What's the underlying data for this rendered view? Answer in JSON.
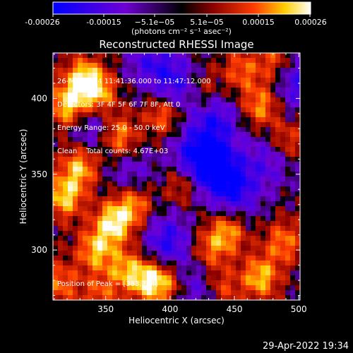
{
  "colorbar": {
    "ticks": [
      "-0.00026",
      "-0.00015",
      "−5.1e−05",
      "5.1e−05",
      "0.00015",
      "0.00026"
    ],
    "unit": "(photons cm⁻² s⁻¹ asec⁻²)",
    "colors": [
      "#0000ff",
      "#6f00d4",
      "#000000",
      "#8a0000",
      "#ff3c00",
      "#ffd000",
      "#ffffff"
    ]
  },
  "chart_data": {
    "type": "heatmap",
    "title": "Reconstructed RHESSI Image",
    "xlabel": "Heliocentric X (arcsec)",
    "ylabel": "Heliocentric Y (arcsec)",
    "xlim": [
      309,
      501
    ],
    "ylim": [
      267,
      430
    ],
    "xticks": [
      350,
      400,
      450,
      500
    ],
    "yticks": [
      300,
      350,
      400
    ],
    "value_range": [
      -0.00026,
      0.00026
    ],
    "peak": [
      383,
      264
    ],
    "blobs": [
      {
        "x": 333,
        "y": 412,
        "v": 1.0
      },
      {
        "x": 320,
        "y": 395,
        "v": 0.9
      },
      {
        "x": 345,
        "y": 403,
        "v": 0.75
      },
      {
        "x": 330,
        "y": 355,
        "v": 0.85
      },
      {
        "x": 318,
        "y": 335,
        "v": 0.9
      },
      {
        "x": 356,
        "y": 318,
        "v": 1.0
      },
      {
        "x": 342,
        "y": 300,
        "v": 0.8
      },
      {
        "x": 372,
        "y": 330,
        "v": 0.75
      },
      {
        "x": 384,
        "y": 280,
        "v": 1.0
      },
      {
        "x": 365,
        "y": 287,
        "v": 0.7
      },
      {
        "x": 360,
        "y": 375,
        "v": 0.8
      },
      {
        "x": 395,
        "y": 390,
        "v": 0.7
      },
      {
        "x": 410,
        "y": 345,
        "v": 0.6
      },
      {
        "x": 430,
        "y": 300,
        "v": 0.55
      },
      {
        "x": 445,
        "y": 312,
        "v": 0.75
      },
      {
        "x": 470,
        "y": 282,
        "v": 0.85
      },
      {
        "x": 488,
        "y": 305,
        "v": 0.65
      },
      {
        "x": 470,
        "y": 395,
        "v": 0.7
      },
      {
        "x": 490,
        "y": 372,
        "v": 0.55
      },
      {
        "x": 455,
        "y": 418,
        "v": 0.55
      },
      {
        "x": 480,
        "y": 425,
        "v": 0.5
      },
      {
        "x": 425,
        "y": 405,
        "v": 0.45
      },
      {
        "x": 400,
        "y": 278,
        "v": 0.55
      },
      {
        "x": 315,
        "y": 278,
        "v": 0.6
      },
      {
        "x": 440,
        "y": 275,
        "v": 0.5
      },
      {
        "x": 345,
        "y": 270,
        "v": 0.5
      }
    ],
    "dips": [
      {
        "x": 420,
        "y": 360,
        "v": 1.0
      },
      {
        "x": 440,
        "y": 352,
        "v": 0.8
      },
      {
        "x": 435,
        "y": 385,
        "v": 0.7
      },
      {
        "x": 405,
        "y": 408,
        "v": 0.7
      },
      {
        "x": 398,
        "y": 305,
        "v": 0.75
      },
      {
        "x": 452,
        "y": 338,
        "v": 0.6
      },
      {
        "x": 478,
        "y": 360,
        "v": 0.5
      },
      {
        "x": 340,
        "y": 380,
        "v": 0.5
      },
      {
        "x": 500,
        "y": 410,
        "v": 0.6
      },
      {
        "x": 385,
        "y": 425,
        "v": 0.55
      },
      {
        "x": 420,
        "y": 275,
        "v": 0.5
      },
      {
        "x": 370,
        "y": 350,
        "v": 0.4
      }
    ]
  },
  "info": {
    "lines": [
      "26-Mar-2004 11:41:36.000 to 11:47:12.000",
      "Detectors: 3F 4F 5F 6F 7F 8F, Att 0",
      "Energy Range: 25.0 - 50.0 keV",
      "Clean    Total counts: 4.67E+03"
    ],
    "peak_text": "Position of Peak = [383,264]"
  },
  "footer": "29-Apr-2022 19:34"
}
